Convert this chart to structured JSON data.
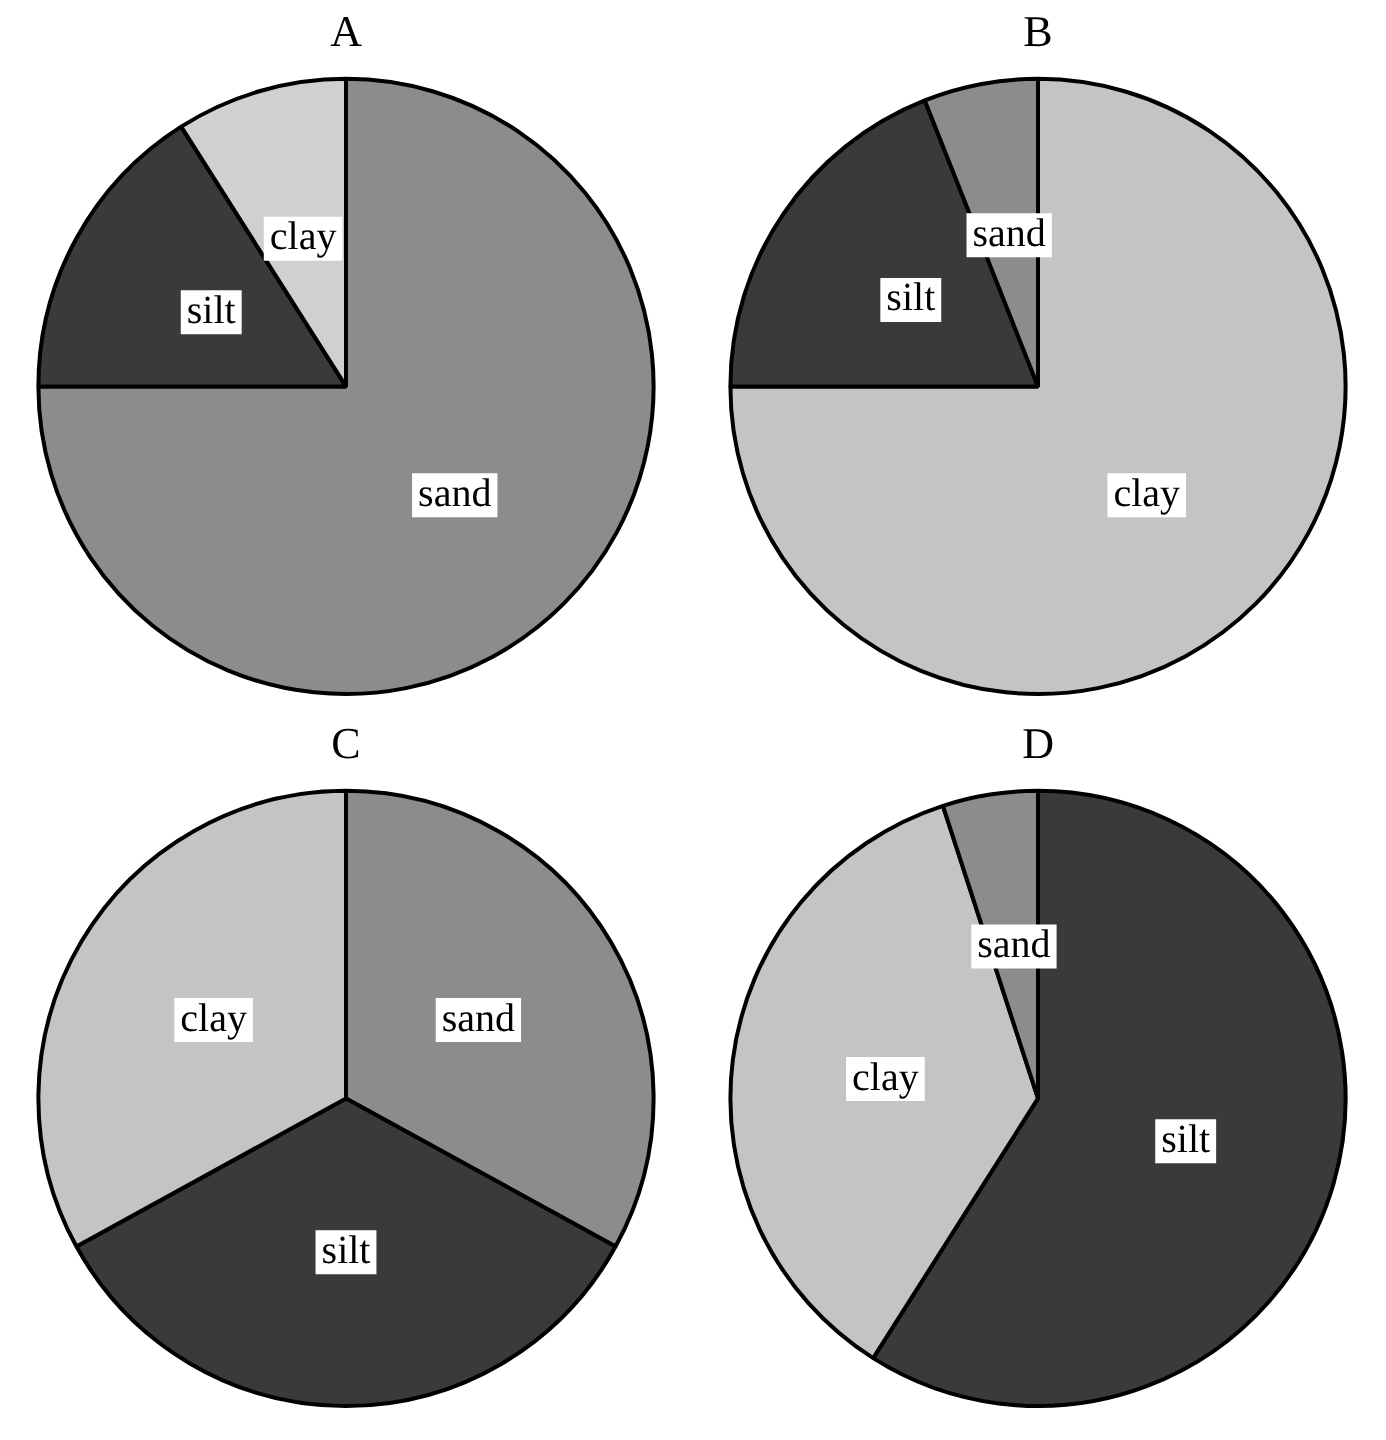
{
  "chart_data": [
    {
      "type": "pie",
      "title": "A",
      "categories": [
        "sand",
        "silt",
        "clay"
      ],
      "values": [
        75,
        16,
        9
      ],
      "colors": [
        "#8c8c8c",
        "#3a3a3a",
        "#d0d0d0"
      ]
    },
    {
      "type": "pie",
      "title": "B",
      "categories": [
        "clay",
        "silt",
        "sand"
      ],
      "values": [
        75,
        19,
        6
      ],
      "colors": [
        "#c4c4c4",
        "#3a3a3a",
        "#8c8c8c"
      ]
    },
    {
      "type": "pie",
      "title": "C",
      "categories": [
        "sand",
        "silt",
        "clay"
      ],
      "values": [
        33,
        34,
        33
      ],
      "colors": [
        "#8c8c8c",
        "#3a3a3a",
        "#c4c4c4"
      ]
    },
    {
      "type": "pie",
      "title": "D",
      "categories": [
        "silt",
        "clay",
        "sand"
      ],
      "values": [
        59,
        36,
        5
      ],
      "colors": [
        "#3a3a3a",
        "#c4c4c4",
        "#8c8c8c"
      ]
    }
  ]
}
